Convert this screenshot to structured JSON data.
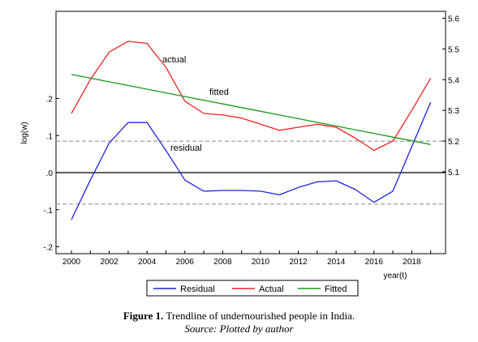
{
  "chart_data": {
    "type": "line",
    "x": [
      2000,
      2001,
      2002,
      2003,
      2004,
      2005,
      2006,
      2007,
      2008,
      2009,
      2010,
      2011,
      2012,
      2013,
      2014,
      2015,
      2016,
      2017,
      2018,
      2019
    ],
    "xticks": [
      "2000",
      "2002",
      "2004",
      "2006",
      "2008",
      "2010",
      "2012",
      "2014",
      "2016",
      "2018"
    ],
    "xlabel": "year(t)",
    "ylabel": "log(w)",
    "y_left": {
      "ylim": [
        -0.2,
        0.2
      ],
      "ticks": [
        "-.2",
        "-.1",
        ".0",
        ".1",
        ".2"
      ]
    },
    "y_right": {
      "ylim": [
        5.1,
        5.6
      ],
      "ticks": [
        "5.1",
        "5.2",
        "5.3",
        "5.4",
        "5.5",
        "5.6"
      ]
    },
    "series": [
      {
        "name": "Residual",
        "axis": "left",
        "color": "#2222dd",
        "values": [
          -0.127,
          -0.02,
          0.08,
          0.135,
          0.135,
          0.06,
          -0.02,
          -0.05,
          -0.048,
          -0.048,
          -0.05,
          -0.06,
          -0.04,
          -0.025,
          -0.022,
          -0.045,
          -0.08,
          -0.05,
          0.07,
          0.19
        ]
      },
      {
        "name": "Actual",
        "axis": "right",
        "color": "#ee2222",
        "values": [
          5.29,
          5.4,
          5.49,
          5.525,
          5.518,
          5.44,
          5.33,
          5.29,
          5.285,
          5.275,
          5.255,
          5.235,
          5.245,
          5.255,
          5.245,
          5.21,
          5.17,
          5.2,
          5.3,
          5.405
        ]
      },
      {
        "name": "Fitted",
        "axis": "right",
        "color": "#1a9a1a",
        "values": [
          5.417,
          5.405,
          5.393,
          5.381,
          5.369,
          5.357,
          5.345,
          5.333,
          5.321,
          5.309,
          5.297,
          5.285,
          5.273,
          5.261,
          5.249,
          5.237,
          5.225,
          5.213,
          5.201,
          5.189
        ]
      }
    ],
    "reference_lines": [
      {
        "axis": "left",
        "y": 0.0,
        "style": "solid"
      },
      {
        "axis": "left",
        "y": 0.085,
        "style": "dashed"
      },
      {
        "axis": "left",
        "y": -0.085,
        "style": "dashed"
      }
    ],
    "annotations": [
      "actual",
      "fitted",
      "residual"
    ],
    "legend": {
      "placement": "bottom-center"
    },
    "grid": false
  },
  "caption": {
    "figure_label": "Figure 1.",
    "title": "Trendline of undernourished people in India.",
    "source": "Source: Plotted by author"
  }
}
